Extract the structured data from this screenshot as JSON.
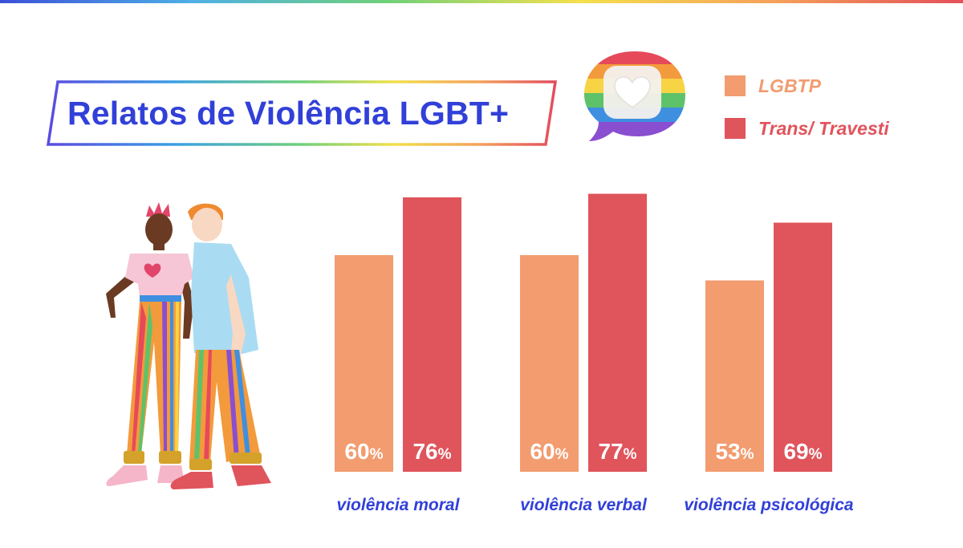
{
  "header": {
    "title": "Relatos de Violência LGBT+"
  },
  "chart_data": {
    "type": "bar",
    "categories": [
      "violência moral",
      "violência verbal",
      "violência psicológica"
    ],
    "series": [
      {
        "name": "LGBTP",
        "values": [
          60,
          60,
          53
        ],
        "labels": [
          "60%",
          "60%",
          "53%"
        ],
        "color": "#f29c70"
      },
      {
        "name": "Trans/ Travesti",
        "values": [
          76,
          77,
          69
        ],
        "labels": [
          "76%",
          "77%",
          "69%"
        ],
        "color": "#e0545c"
      }
    ],
    "ylim": [
      0,
      100
    ],
    "grid": false,
    "legend_position": "top-right",
    "value_label_position": "inside-bottom"
  },
  "colors": {
    "title": "#3140d8",
    "category_label": "#3140d8",
    "value_label": "#ffffff"
  },
  "icons": {
    "badge": "rainbow-heart-chat-bubble-icon",
    "illustration": "couple-illustration"
  }
}
